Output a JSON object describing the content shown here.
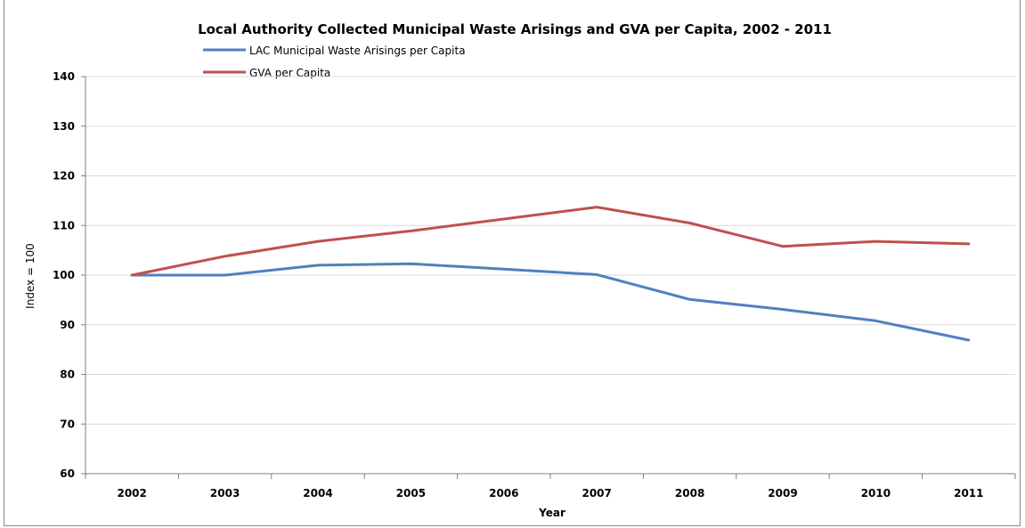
{
  "chart_data": {
    "type": "line",
    "title": "Local Authority Collected Municipal Waste Arisings and GVA per Capita, 2002 - 2011",
    "xlabel": "Year",
    "ylabel": "Index = 100",
    "categories": [
      "2002",
      "2003",
      "2004",
      "2005",
      "2006",
      "2007",
      "2008",
      "2009",
      "2010",
      "2011"
    ],
    "ylim": [
      60,
      140
    ],
    "yticks": [
      60,
      70,
      80,
      90,
      100,
      110,
      120,
      130,
      140
    ],
    "grid": true,
    "legend_position": "top",
    "series": [
      {
        "name": "LAC Municipal Waste Arisings per Capita",
        "color": "#4f81bd",
        "values": [
          100,
          100,
          102,
          102.3,
          101.2,
          100.1,
          95.1,
          93.1,
          90.8,
          86.9
        ]
      },
      {
        "name": "GVA per Capita",
        "color": "#c0504d",
        "values": [
          100,
          103.8,
          106.8,
          108.9,
          111.3,
          113.7,
          110.5,
          105.8,
          106.8,
          106.3
        ]
      }
    ]
  }
}
